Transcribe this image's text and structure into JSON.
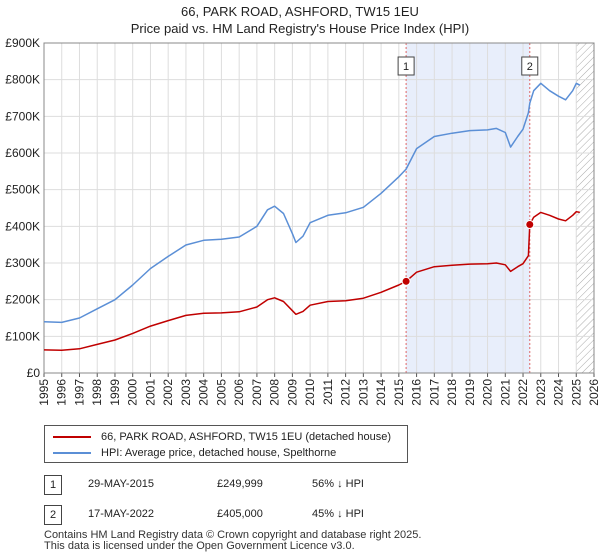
{
  "chart_data": {
    "type": "line",
    "title": "66, PARK ROAD, ASHFORD, TW15 1EU",
    "subtitle": "Price paid vs. HM Land Registry's House Price Index (HPI)",
    "xlabel": "",
    "ylabel": "",
    "xlim": [
      1995,
      2026
    ],
    "ylim": [
      0,
      900000
    ],
    "grid": true,
    "y_ticks": [
      {
        "value": 0,
        "label": "£0"
      },
      {
        "value": 100000,
        "label": "£100K"
      },
      {
        "value": 200000,
        "label": "£200K"
      },
      {
        "value": 300000,
        "label": "£300K"
      },
      {
        "value": 400000,
        "label": "£400K"
      },
      {
        "value": 500000,
        "label": "£500K"
      },
      {
        "value": 600000,
        "label": "£600K"
      },
      {
        "value": 700000,
        "label": "£700K"
      },
      {
        "value": 800000,
        "label": "£800K"
      },
      {
        "value": 900000,
        "label": "£900K"
      }
    ],
    "x_ticks": [
      "1995",
      "1996",
      "1997",
      "1998",
      "1999",
      "2000",
      "2001",
      "2002",
      "2003",
      "2004",
      "2005",
      "2006",
      "2007",
      "2008",
      "2009",
      "2010",
      "2011",
      "2012",
      "2013",
      "2014",
      "2015",
      "2016",
      "2017",
      "2018",
      "2019",
      "2020",
      "2021",
      "2022",
      "2023",
      "2024",
      "2025",
      "2026"
    ],
    "shaded_region": [
      2015.41,
      2022.38
    ],
    "future_hatch_from": 2025.0,
    "series": [
      {
        "name": "66, PARK ROAD, ASHFORD, TW15 1EU (detached house)",
        "color": "#c00000",
        "x": [
          1995.0,
          1996.0,
          1997.0,
          1998.0,
          1999.0,
          2000.0,
          2001.0,
          2002.0,
          2003.0,
          2004.0,
          2005.0,
          2006.0,
          2007.0,
          2007.6,
          2008.0,
          2008.5,
          2009.0,
          2009.2,
          2009.6,
          2010.0,
          2011.0,
          2012.0,
          2013.0,
          2014.0,
          2015.0,
          2015.41,
          2016.0,
          2017.0,
          2018.0,
          2019.0,
          2020.0,
          2020.5,
          2021.0,
          2021.3,
          2021.7,
          2022.0,
          2022.3,
          2022.38,
          2022.6,
          2023.0,
          2023.5,
          2024.0,
          2024.4,
          2024.8,
          2025.0,
          2025.2
        ],
        "values": [
          63000,
          62000,
          66000,
          78000,
          90000,
          108000,
          128000,
          143000,
          157000,
          163000,
          164000,
          167000,
          180000,
          200000,
          205000,
          195000,
          170000,
          160000,
          168000,
          185000,
          195000,
          197000,
          204000,
          220000,
          240000,
          249999,
          275000,
          290000,
          294000,
          297000,
          298000,
          300000,
          295000,
          277000,
          290000,
          298000,
          320000,
          405000,
          425000,
          438000,
          430000,
          420000,
          415000,
          430000,
          440000,
          438000
        ]
      },
      {
        "name": "HPI: Average price, detached house, Spelthorne",
        "color": "#5b8fd6",
        "x": [
          1995.0,
          1996.0,
          1997.0,
          1998.0,
          1999.0,
          2000.0,
          2001.0,
          2002.0,
          2003.0,
          2004.0,
          2005.0,
          2006.0,
          2007.0,
          2007.6,
          2008.0,
          2008.5,
          2009.0,
          2009.2,
          2009.6,
          2010.0,
          2011.0,
          2012.0,
          2013.0,
          2014.0,
          2015.0,
          2015.41,
          2016.0,
          2017.0,
          2018.0,
          2019.0,
          2020.0,
          2020.5,
          2021.0,
          2021.3,
          2021.7,
          2022.0,
          2022.3,
          2022.38,
          2022.6,
          2023.0,
          2023.5,
          2024.0,
          2024.4,
          2024.8,
          2025.0,
          2025.2
        ],
        "values": [
          140000,
          138000,
          150000,
          175000,
          200000,
          240000,
          285000,
          318000,
          349000,
          362000,
          365000,
          371000,
          400000,
          445000,
          455000,
          435000,
          380000,
          356000,
          373000,
          410000,
          430000,
          437000,
          452000,
          490000,
          535000,
          556000,
          612000,
          645000,
          654000,
          661000,
          663000,
          667000,
          656000,
          616000,
          645000,
          665000,
          710000,
          736000,
          770000,
          790000,
          770000,
          755000,
          745000,
          770000,
          790000,
          785000
        ]
      }
    ],
    "markers": [
      {
        "label": "1",
        "x": 2015.41,
        "value": 249999
      },
      {
        "label": "2",
        "x": 2022.38,
        "value": 405000
      }
    ]
  },
  "legend": {
    "items": [
      {
        "label": "66, PARK ROAD, ASHFORD, TW15 1EU (detached house)",
        "color": "#c00000"
      },
      {
        "label": "HPI: Average price, detached house, Spelthorne",
        "color": "#5b8fd6"
      }
    ]
  },
  "sales": [
    {
      "num": "1",
      "date": "29-MAY-2015",
      "price": "£249,999",
      "hpi": "56% ↓ HPI"
    },
    {
      "num": "2",
      "date": "17-MAY-2022",
      "price": "£405,000",
      "hpi": "45% ↓ HPI"
    }
  ],
  "footer": {
    "line1": "Contains HM Land Registry data © Crown copyright and database right 2025.",
    "line2": "This data is licensed under the Open Government Licence v3.0."
  }
}
